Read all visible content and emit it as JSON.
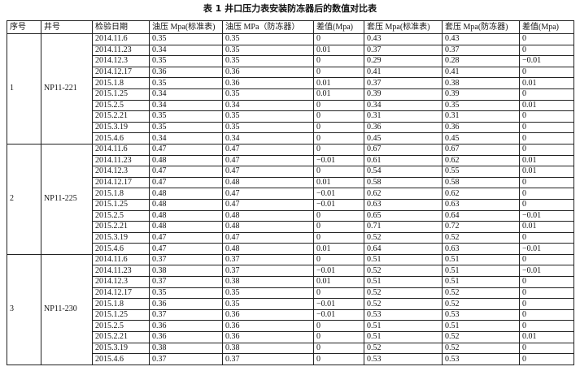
{
  "title": "表 1 井口压力表安装防冻器后的数值对比表",
  "headers": [
    "序号",
    "井号",
    "检验日期",
    "油压 Mpa(标准表)",
    "油压 MPa（防冻器）",
    "差值(Mpa)",
    "套压 Mpa(标准表)",
    "套压 Mpa(防冻器)",
    "差值(Mpa)"
  ],
  "groups": [
    {
      "no": "1",
      "well": "NP11-221",
      "rows": [
        [
          "2014.11.6",
          "0.35",
          "0.35",
          "0",
          "0.43",
          "0.43",
          "0"
        ],
        [
          "2014.11.23",
          "0.34",
          "0.35",
          "0.01",
          "0.37",
          "0.37",
          "0"
        ],
        [
          "2014.12.3",
          "0.35",
          "0.35",
          "0",
          "0.29",
          "0.28",
          "−0.01"
        ],
        [
          "2014.12.17",
          "0.36",
          "0.36",
          "0",
          "0.41",
          "0.41",
          "0"
        ],
        [
          "2015.1.8",
          "0.35",
          "0.36",
          "0.01",
          "0.37",
          "0.38",
          "0.01"
        ],
        [
          "2015.1.25",
          "0.34",
          "0.35",
          "0.01",
          "0.39",
          "0.39",
          "0"
        ],
        [
          "2015.2.5",
          "0.34",
          "0.34",
          "0",
          "0.34",
          "0.35",
          "0.01"
        ],
        [
          "2015.2.21",
          "0.35",
          "0.35",
          "0",
          "0.31",
          "0.31",
          "0"
        ],
        [
          "2015.3.19",
          "0.35",
          "0.35",
          "0",
          "0.36",
          "0.36",
          "0"
        ],
        [
          "2015.4.6",
          "0.34",
          "0.34",
          "0",
          "0.45",
          "0.45",
          "0"
        ]
      ]
    },
    {
      "no": "2",
      "well": "NP11-225",
      "rows": [
        [
          "2014.11.6",
          "0.47",
          "0.47",
          "0",
          "0.67",
          "0.67",
          "0"
        ],
        [
          "2014.11.23",
          "0.48",
          "0.47",
          "−0.01",
          "0.61",
          "0.62",
          "0.01"
        ],
        [
          "2014.12.3",
          "0.47",
          "0.47",
          "0",
          "0.54",
          "0.55",
          "0.01"
        ],
        [
          "2014.12.17",
          "0.47",
          "0.48",
          "0.01",
          "0.58",
          "0.58",
          "0"
        ],
        [
          "2015.1.8",
          "0.48",
          "0.47",
          "−0.01",
          "0.62",
          "0.62",
          "0"
        ],
        [
          "2015.1.25",
          "0.48",
          "0.47",
          "−0.01",
          "0.63",
          "0.63",
          "0"
        ],
        [
          "2015.2.5",
          "0.48",
          "0.48",
          "0",
          "0.65",
          "0.64",
          "−0.01"
        ],
        [
          "2015.2.21",
          "0.48",
          "0.48",
          "0",
          "0.71",
          "0.72",
          "0.01"
        ],
        [
          "2015.3.19",
          "0.47",
          "0.47",
          "0",
          "0.52",
          "0.52",
          "0"
        ],
        [
          "2015.4.6",
          "0.47",
          "0.48",
          "0.01",
          "0.64",
          "0.63",
          "−0.01"
        ]
      ]
    },
    {
      "no": "3",
      "well": "NP11-230",
      "rows": [
        [
          "2014.11.6",
          "0.37",
          "0.37",
          "0",
          "0.51",
          "0.51",
          "0"
        ],
        [
          "2014.11.23",
          "0.38",
          "0.37",
          "−0.01",
          "0.52",
          "0.51",
          "−0.01"
        ],
        [
          "2014.12.3",
          "0.37",
          "0.38",
          "0.01",
          "0.51",
          "0.51",
          "0"
        ],
        [
          "2014.12.17",
          "0.35",
          "0.35",
          "0",
          "0.52",
          "0.52",
          "0"
        ],
        [
          "2015.1.8",
          "0.36",
          "0.35",
          "−0.01",
          "0.52",
          "0.52",
          "0"
        ],
        [
          "2015.1.25",
          "0.37",
          "0.36",
          "−0.01",
          "0.53",
          "0.53",
          "0"
        ],
        [
          "2015.2.5",
          "0.36",
          "0.36",
          "0",
          "0.51",
          "0.51",
          "0"
        ],
        [
          "2015.2.21",
          "0.36",
          "0.36",
          "0",
          "0.51",
          "0.52",
          "0.01"
        ],
        [
          "2015.3.19",
          "0.38",
          "0.38",
          "0",
          "0.52",
          "0.52",
          "0"
        ],
        [
          "2015.4.6",
          "0.37",
          "0.37",
          "0",
          "0.53",
          "0.53",
          "0"
        ]
      ]
    }
  ]
}
